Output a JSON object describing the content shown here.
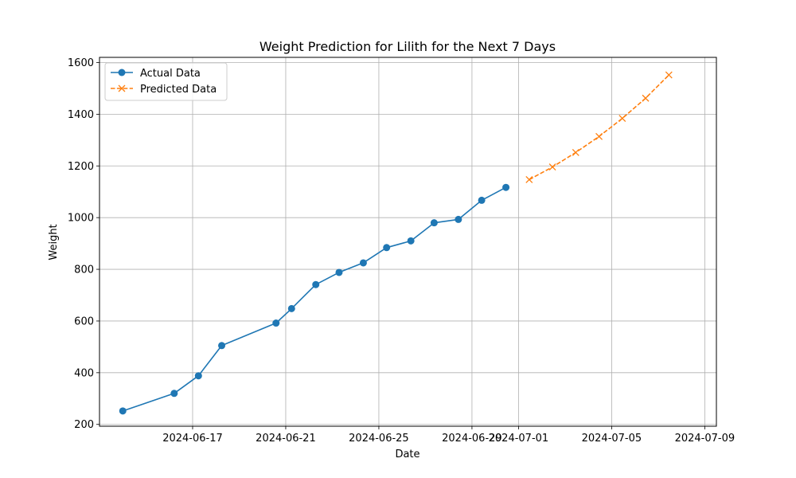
{
  "chart_data": {
    "type": "line",
    "title": "Weight Prediction for Lilith for the Next 7 Days",
    "xlabel": "Date",
    "ylabel": "Weight",
    "xlim": [
      "2024-06-13T00:00",
      "2024-07-09T12:00"
    ],
    "ylim": [
      193,
      1620
    ],
    "x_ticks": [
      "2024-06-17",
      "2024-06-21",
      "2024-06-25",
      "2024-06-29",
      "2024-07-01",
      "2024-07-05",
      "2024-07-09"
    ],
    "y_ticks": [
      200,
      400,
      600,
      800,
      1000,
      1200,
      1400,
      1600
    ],
    "grid": true,
    "legend_position": "upper-left",
    "series": [
      {
        "name": "Actual Data",
        "color": "#1f77b4",
        "linestyle": "solid",
        "marker": "circle",
        "points": [
          {
            "x": "2024-06-14",
            "y": 252
          },
          {
            "x": "2024-06-16T05:00",
            "y": 320
          },
          {
            "x": "2024-06-17T06:00",
            "y": 388
          },
          {
            "x": "2024-06-18T06:00",
            "y": 505
          },
          {
            "x": "2024-06-20T14:00",
            "y": 592
          },
          {
            "x": "2024-06-21T06:00",
            "y": 648
          },
          {
            "x": "2024-06-22T07:00",
            "y": 741
          },
          {
            "x": "2024-06-23T07:00",
            "y": 788
          },
          {
            "x": "2024-06-24T08:00",
            "y": 825
          },
          {
            "x": "2024-06-25T08:00",
            "y": 884
          },
          {
            "x": "2024-06-26T09:00",
            "y": 910
          },
          {
            "x": "2024-06-27T09:00",
            "y": 980
          },
          {
            "x": "2024-06-28T10:00",
            "y": 993
          },
          {
            "x": "2024-06-29T10:00",
            "y": 1067
          },
          {
            "x": "2024-06-30T11:00",
            "y": 1117
          }
        ]
      },
      {
        "name": "Predicted Data",
        "color": "#ff7f0e",
        "linestyle": "dashed",
        "marker": "x",
        "points": [
          {
            "x": "2024-07-01T11:00",
            "y": 1147
          },
          {
            "x": "2024-07-02T11:00",
            "y": 1196
          },
          {
            "x": "2024-07-03T11:00",
            "y": 1252
          },
          {
            "x": "2024-07-04T11:00",
            "y": 1314
          },
          {
            "x": "2024-07-05T11:00",
            "y": 1384
          },
          {
            "x": "2024-07-06T11:00",
            "y": 1462
          },
          {
            "x": "2024-07-07T11:00",
            "y": 1552
          }
        ]
      }
    ]
  }
}
